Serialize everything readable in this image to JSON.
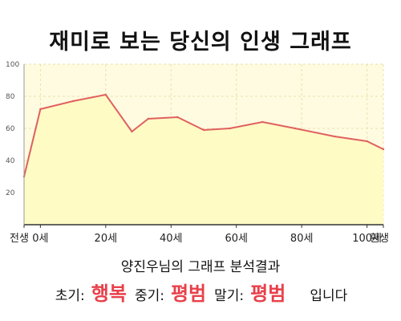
{
  "chart_data": {
    "type": "area",
    "title": "재미로 보는 당신의 인생 그래프",
    "x": [
      "전생",
      "0세",
      "10세",
      "20세",
      "28세",
      "33세",
      "42세",
      "50세",
      "58세",
      "68세",
      "78세",
      "90세",
      "100세",
      "환생"
    ],
    "values": [
      30,
      72,
      77,
      81,
      58,
      66,
      67,
      59,
      60,
      64,
      60,
      55,
      52,
      47
    ],
    "x_tick_labels": [
      "전생",
      "0세",
      "20세",
      "40세",
      "60세",
      "80세",
      "100세",
      "환생"
    ],
    "ylim": [
      0,
      100
    ],
    "y_ticks": [
      20,
      40,
      60,
      80,
      100
    ],
    "grid": true,
    "colors": {
      "line": "#e06060",
      "fill": "#fffbc4",
      "plot_bg": "#fffbe0",
      "grid": "#e7e0b0"
    }
  },
  "result": {
    "subtitle": "양진우님의 그래프 분석결과",
    "early_label": "초기:",
    "early_value": "행복",
    "mid_label": "중기:",
    "mid_value": "평범",
    "late_label": "말기:",
    "late_value": "평범",
    "suffix": "입니다"
  }
}
